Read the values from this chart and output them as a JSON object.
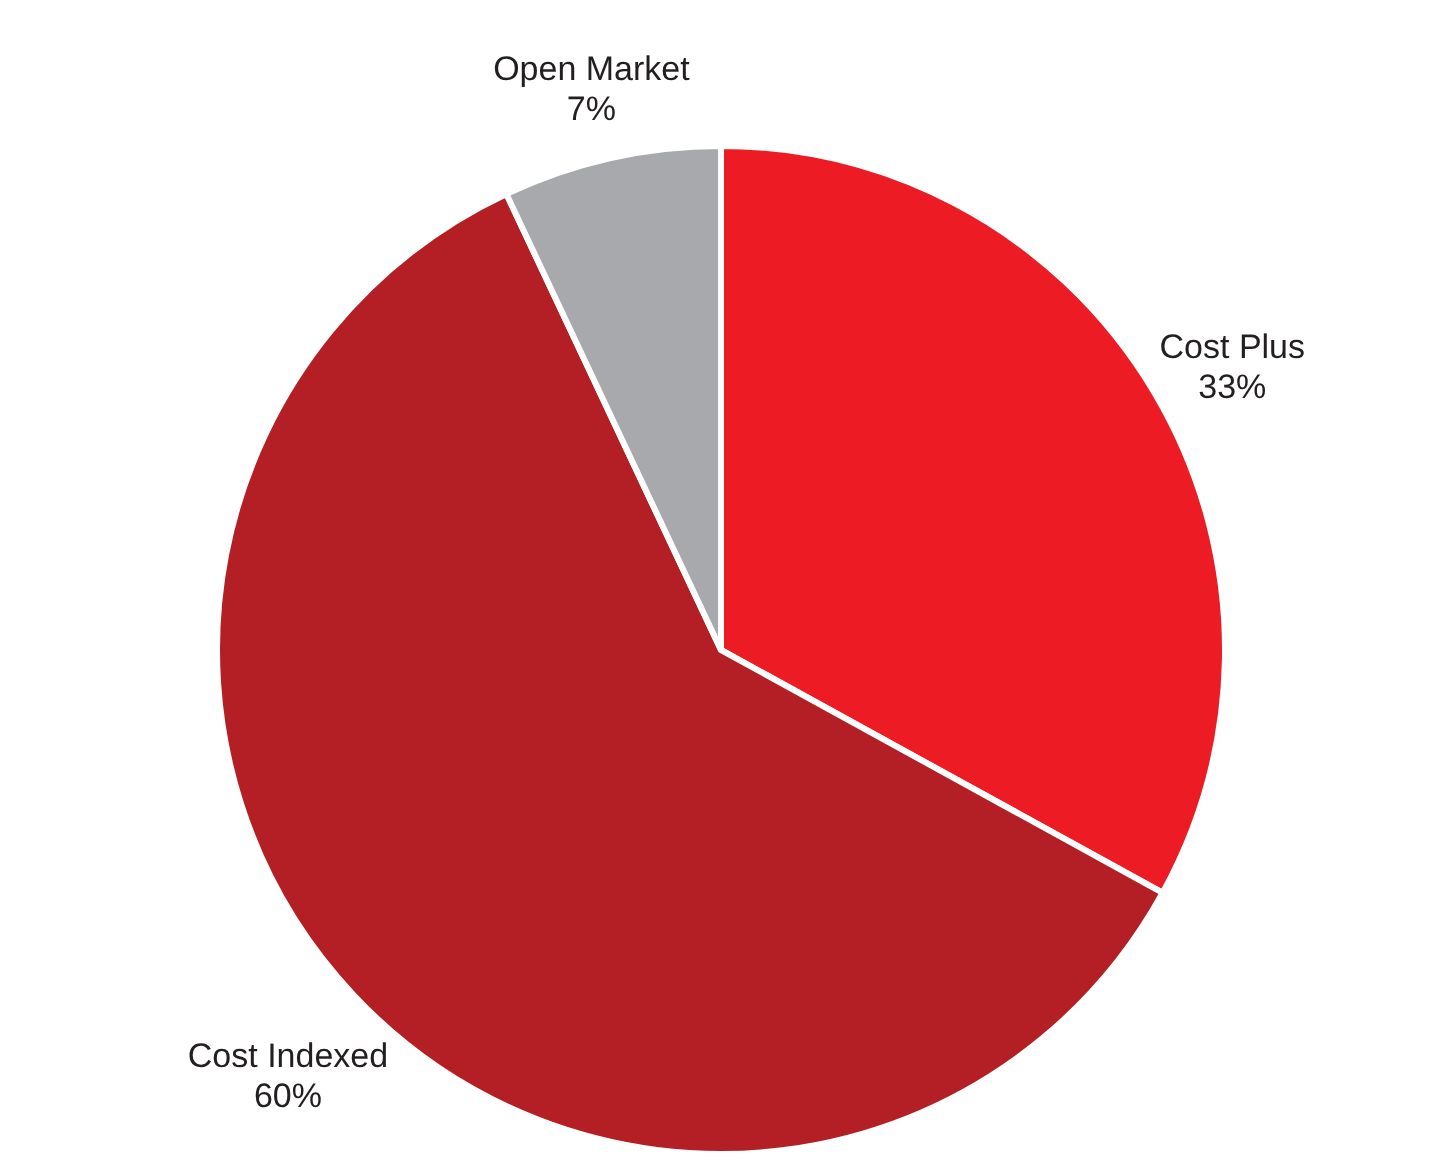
{
  "chart_data": {
    "type": "pie",
    "categories": [
      "Cost Plus",
      "Cost Indexed",
      "Open Market"
    ],
    "values": [
      33,
      60,
      7
    ],
    "value_labels": [
      "33%",
      "60%",
      "7%"
    ],
    "colors": [
      "#ed1c24",
      "#b31f24",
      "#a7a9ac"
    ]
  }
}
